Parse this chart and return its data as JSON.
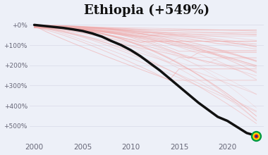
{
  "title": "Ethiopia (+549%)",
  "title_fontsize": 13,
  "years": [
    2000,
    2001,
    2002,
    2003,
    2004,
    2005,
    2006,
    2007,
    2008,
    2009,
    2010,
    2011,
    2012,
    2013,
    2014,
    2015,
    2016,
    2017,
    2018,
    2019,
    2020,
    2021,
    2022,
    2023
  ],
  "ethiopia_pct": [
    0,
    5,
    10,
    15,
    22,
    30,
    42,
    58,
    80,
    100,
    125,
    155,
    190,
    225,
    265,
    305,
    345,
    385,
    420,
    455,
    475,
    505,
    535,
    549
  ],
  "bg_color": "#edf0f8",
  "line_color": "#111111",
  "faded_line_color": "#f0aaaa",
  "ylabel_ticks": [
    "+0%",
    "+100%",
    "+200%",
    "+300%",
    "+400%",
    "+500%"
  ],
  "ytick_vals": [
    0,
    100,
    200,
    300,
    400,
    500
  ],
  "xlim": [
    1999.5,
    2023.8
  ],
  "ylim": [
    580,
    -30
  ],
  "xticks": [
    2000,
    2005,
    2010,
    2015,
    2020
  ],
  "num_faded_lines": 45,
  "flag_green": "#009A44",
  "flag_yellow": "#FCDD09",
  "flag_red": "#EF2118",
  "flag_blue": "#003399",
  "endpoint_year": 2023,
  "endpoint_pct": 549
}
